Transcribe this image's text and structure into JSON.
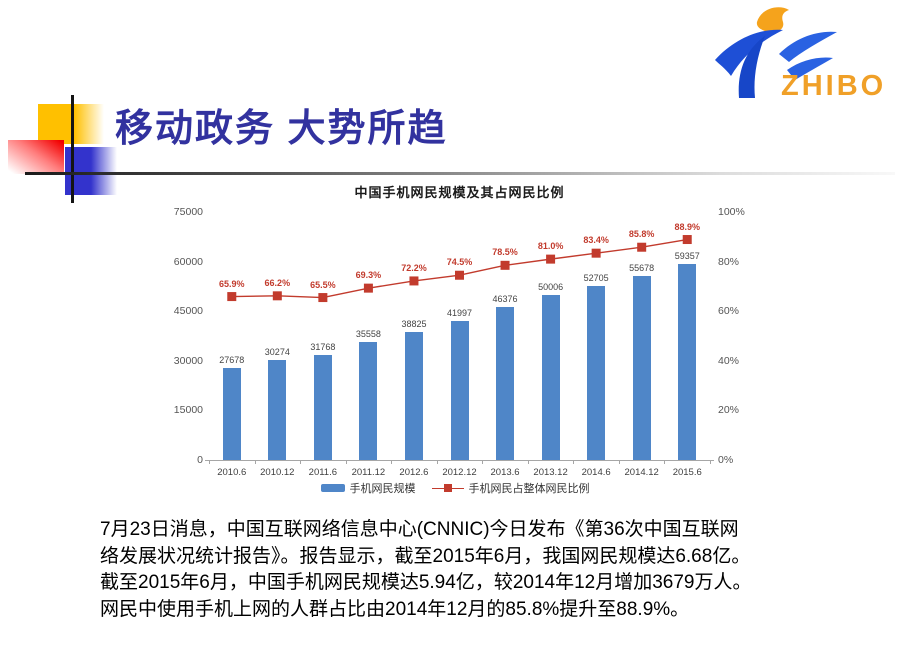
{
  "slide": {
    "title": "移动政务 大势所趋",
    "logo": {
      "text": "ZHIBO"
    },
    "body_lines": [
      "7月23日消息，中国互联网络信息中心(CNNIC)今日发布《第36次中国互联网",
      "络发展状况统计报告》。报告显示，截至2015年6月，我国网民规模达6.68亿。",
      "截至2015年6月，中国手机网民规模达5.94亿，较2014年12月增加3679万人。",
      "网民中使用手机上网的人群占比由2014年12月的85.8%提升至88.9%。"
    ]
  },
  "colors": {
    "title": "#32329f",
    "bar": "#4f86c8",
    "line": "#c23b2d",
    "logo_blue": "#1e4fd6",
    "logo_orange": "#f0a028"
  },
  "chart_data": {
    "type": "bar",
    "title": "中国手机网民规模及其占网民比例",
    "categories": [
      "2010.6",
      "2010.12",
      "2011.6",
      "2011.12",
      "2012.6",
      "2012.12",
      "2013.6",
      "2013.12",
      "2014.6",
      "2014.12",
      "2015.6"
    ],
    "series": [
      {
        "name": "手机网民规模",
        "type": "bar",
        "color": "#4f86c8",
        "values": [
          27678,
          30274,
          31768,
          35558,
          38825,
          41997,
          46376,
          50006,
          52705,
          55678,
          59357
        ]
      },
      {
        "name": "手机网民占整体网民比例",
        "type": "line",
        "color": "#c23b2d",
        "values": [
          65.9,
          66.2,
          65.5,
          69.3,
          72.2,
          74.5,
          78.5,
          81.0,
          83.4,
          85.8,
          88.9
        ],
        "labels": [
          "65.9%",
          "66.2%",
          "65.5%",
          "69.3%",
          "72.2%",
          "74.5%",
          "78.5%",
          "81.0%",
          "83.4%",
          "85.8%",
          "88.9%"
        ]
      }
    ],
    "left_axis": {
      "ticks": [
        "0",
        "15000",
        "30000",
        "45000",
        "60000",
        "75000"
      ],
      "min": 0,
      "max": 75000
    },
    "right_axis": {
      "ticks": [
        "0%",
        "20%",
        "40%",
        "60%",
        "80%",
        "100%"
      ],
      "min": 0,
      "max": 100
    },
    "legend_position": "bottom",
    "grid": false
  }
}
